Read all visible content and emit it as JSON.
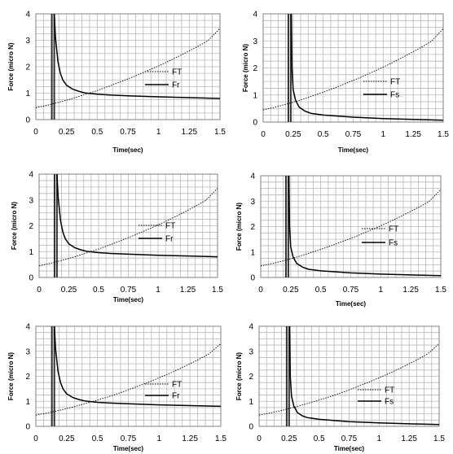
{
  "chart_data": [
    {
      "type": "line",
      "title": "",
      "xlabel": "Time(sec)",
      "ylabel": "Force (micro N)",
      "xlim": [
        0,
        1.5
      ],
      "ylim": [
        0,
        4
      ],
      "xticks": [
        "0",
        "0.25",
        "0.5",
        "0.75",
        "1",
        "1.25",
        "1.5"
      ],
      "yticks": [
        "0",
        "1",
        "2",
        "3",
        "4"
      ],
      "grid": true,
      "legend_position": "right",
      "vertical_lines": [
        0.13,
        0.15
      ],
      "series": [
        {
          "name": "FT",
          "style": "dotted",
          "x": [
            0,
            0.1,
            0.2,
            0.3,
            0.4,
            0.5,
            0.6,
            0.7,
            0.8,
            0.9,
            1.0,
            1.1,
            1.2,
            1.3,
            1.4,
            1.5
          ],
          "y": [
            0.45,
            0.55,
            0.67,
            0.8,
            0.95,
            1.1,
            1.27,
            1.45,
            1.63,
            1.83,
            2.03,
            2.25,
            2.48,
            2.72,
            2.98,
            3.45
          ]
        },
        {
          "name": "Fr",
          "style": "solid",
          "x": [
            0.15,
            0.16,
            0.18,
            0.2,
            0.22,
            0.25,
            0.3,
            0.35,
            0.4,
            0.5,
            0.6,
            0.75,
            1.0,
            1.25,
            1.5
          ],
          "y": [
            4.0,
            3.1,
            2.2,
            1.75,
            1.5,
            1.3,
            1.15,
            1.07,
            1.01,
            0.96,
            0.93,
            0.9,
            0.86,
            0.83,
            0.8
          ]
        }
      ]
    },
    {
      "type": "line",
      "title": "",
      "xlabel": "Time(sec)",
      "ylabel": "Force (micro N)",
      "xlim": [
        0,
        1.5
      ],
      "ylim": [
        0,
        4
      ],
      "xticks": [
        "0",
        "0.25",
        "0.5",
        "0.75",
        "1",
        "1.25",
        "1.5"
      ],
      "yticks": [
        "0",
        "1",
        "2",
        "3",
        "4"
      ],
      "grid": true,
      "legend_position": "right",
      "vertical_lines": [
        0.21,
        0.23
      ],
      "series": [
        {
          "name": "FT",
          "style": "dotted",
          "x": [
            0,
            0.1,
            0.2,
            0.3,
            0.4,
            0.5,
            0.6,
            0.7,
            0.8,
            0.9,
            1.0,
            1.1,
            1.2,
            1.3,
            1.4,
            1.5
          ],
          "y": [
            0.45,
            0.55,
            0.67,
            0.8,
            0.95,
            1.1,
            1.27,
            1.45,
            1.63,
            1.83,
            2.03,
            2.25,
            2.48,
            2.72,
            2.98,
            3.45
          ]
        },
        {
          "name": "Fs",
          "style": "solid",
          "x": [
            0.235,
            0.24,
            0.25,
            0.27,
            0.3,
            0.35,
            0.4,
            0.5,
            0.75,
            1.0,
            1.25,
            1.5
          ],
          "y": [
            4.0,
            2.0,
            1.2,
            0.8,
            0.55,
            0.4,
            0.32,
            0.26,
            0.18,
            0.13,
            0.1,
            0.07
          ]
        }
      ]
    },
    {
      "type": "line",
      "title": "",
      "xlabel": "Time(sec)",
      "ylabel": "Force (micro N)",
      "xlim": [
        0,
        1.5
      ],
      "ylim": [
        0,
        4
      ],
      "xticks": [
        "0",
        "0.25",
        "0.5",
        "0.75",
        "1",
        "1.25",
        "1.5"
      ],
      "yticks": [
        "0",
        "1",
        "2",
        "3",
        "4"
      ],
      "grid": true,
      "legend_position": "right",
      "vertical_lines": [
        0.13,
        0.15
      ],
      "series": [
        {
          "name": "FT",
          "style": "dotted",
          "x": [
            0,
            0.1,
            0.2,
            0.3,
            0.4,
            0.5,
            0.6,
            0.7,
            0.8,
            0.9,
            1.0,
            1.1,
            1.2,
            1.3,
            1.4,
            1.5
          ],
          "y": [
            0.45,
            0.55,
            0.67,
            0.8,
            0.95,
            1.1,
            1.27,
            1.45,
            1.63,
            1.83,
            2.03,
            2.25,
            2.48,
            2.72,
            2.98,
            3.45
          ]
        },
        {
          "name": "Fr",
          "style": "solid",
          "x": [
            0.15,
            0.16,
            0.18,
            0.2,
            0.22,
            0.25,
            0.3,
            0.35,
            0.4,
            0.5,
            0.6,
            0.75,
            1.0,
            1.25,
            1.5
          ],
          "y": [
            4.0,
            3.1,
            2.2,
            1.75,
            1.5,
            1.3,
            1.15,
            1.07,
            1.01,
            0.96,
            0.93,
            0.9,
            0.86,
            0.83,
            0.8
          ]
        }
      ]
    },
    {
      "type": "line",
      "title": "",
      "xlabel": "Time(sec)",
      "ylabel": "Force (micro N)",
      "xlim": [
        0,
        1.5
      ],
      "ylim": [
        0,
        4
      ],
      "xticks": [
        "0",
        "0.25",
        "0.5",
        "0.75",
        "1",
        "1.25",
        "1.5"
      ],
      "yticks": [
        "0",
        "1",
        "2",
        "3",
        "4"
      ],
      "grid": true,
      "legend_position": "right",
      "vertical_lines": [
        0.21,
        0.23
      ],
      "series": [
        {
          "name": "FT",
          "style": "dotted",
          "x": [
            0,
            0.1,
            0.2,
            0.3,
            0.4,
            0.5,
            0.6,
            0.7,
            0.8,
            0.9,
            1.0,
            1.1,
            1.2,
            1.3,
            1.4,
            1.5
          ],
          "y": [
            0.45,
            0.55,
            0.67,
            0.8,
            0.95,
            1.1,
            1.27,
            1.45,
            1.63,
            1.83,
            2.03,
            2.25,
            2.48,
            2.72,
            2.98,
            3.45
          ]
        },
        {
          "name": "Fs",
          "style": "solid",
          "x": [
            0.235,
            0.24,
            0.25,
            0.27,
            0.3,
            0.35,
            0.4,
            0.5,
            0.75,
            1.0,
            1.25,
            1.5
          ],
          "y": [
            4.0,
            2.0,
            1.2,
            0.8,
            0.55,
            0.4,
            0.32,
            0.26,
            0.18,
            0.13,
            0.1,
            0.07
          ]
        }
      ]
    },
    {
      "type": "line",
      "title": "",
      "xlabel": "Time(sec)",
      "ylabel": "Force (micro N)",
      "xlim": [
        0,
        1.5
      ],
      "ylim": [
        0,
        4
      ],
      "xticks": [
        "0",
        "0.25",
        "0.5",
        "0.75",
        "1",
        "1.25",
        "1.5"
      ],
      "yticks": [
        "0",
        "1",
        "2",
        "3",
        "4"
      ],
      "grid": true,
      "legend_position": "right",
      "vertical_lines": [
        0.13,
        0.15
      ],
      "series": [
        {
          "name": "FT",
          "style": "dotted",
          "x": [
            0,
            0.1,
            0.2,
            0.3,
            0.4,
            0.5,
            0.6,
            0.7,
            0.8,
            0.9,
            1.0,
            1.1,
            1.2,
            1.3,
            1.4,
            1.5
          ],
          "y": [
            0.45,
            0.54,
            0.65,
            0.77,
            0.91,
            1.05,
            1.2,
            1.37,
            1.55,
            1.74,
            1.94,
            2.15,
            2.38,
            2.62,
            2.88,
            3.3
          ]
        },
        {
          "name": "Fr",
          "style": "solid",
          "x": [
            0.15,
            0.16,
            0.18,
            0.2,
            0.22,
            0.25,
            0.3,
            0.35,
            0.4,
            0.5,
            0.6,
            0.75,
            1.0,
            1.25,
            1.5
          ],
          "y": [
            4.0,
            3.1,
            2.2,
            1.75,
            1.5,
            1.3,
            1.15,
            1.07,
            1.01,
            0.96,
            0.93,
            0.9,
            0.86,
            0.83,
            0.8
          ]
        }
      ]
    },
    {
      "type": "line",
      "title": "",
      "xlabel": "Time(sec)",
      "ylabel": "Force (micro N)",
      "xlim": [
        0,
        1.5
      ],
      "ylim": [
        0,
        4
      ],
      "xticks": [
        "0",
        "0.25",
        "0.5",
        "0.75",
        "1",
        "1.25",
        "1.5"
      ],
      "yticks": [
        "0",
        "1",
        "2",
        "3",
        "4"
      ],
      "grid": true,
      "legend_position": "right",
      "vertical_lines": [
        0.23,
        0.25
      ],
      "series": [
        {
          "name": "FT",
          "style": "dotted",
          "x": [
            0,
            0.1,
            0.2,
            0.3,
            0.4,
            0.5,
            0.6,
            0.7,
            0.8,
            0.9,
            1.0,
            1.1,
            1.2,
            1.3,
            1.4,
            1.5
          ],
          "y": [
            0.45,
            0.54,
            0.65,
            0.77,
            0.91,
            1.05,
            1.2,
            1.37,
            1.55,
            1.74,
            1.94,
            2.15,
            2.38,
            2.62,
            2.88,
            3.3
          ]
        },
        {
          "name": "Fs",
          "style": "solid",
          "x": [
            0.255,
            0.26,
            0.27,
            0.29,
            0.32,
            0.36,
            0.4,
            0.5,
            0.75,
            1.0,
            1.25,
            1.5
          ],
          "y": [
            4.0,
            2.0,
            1.2,
            0.8,
            0.55,
            0.42,
            0.35,
            0.28,
            0.19,
            0.14,
            0.1,
            0.07
          ]
        }
      ]
    }
  ]
}
